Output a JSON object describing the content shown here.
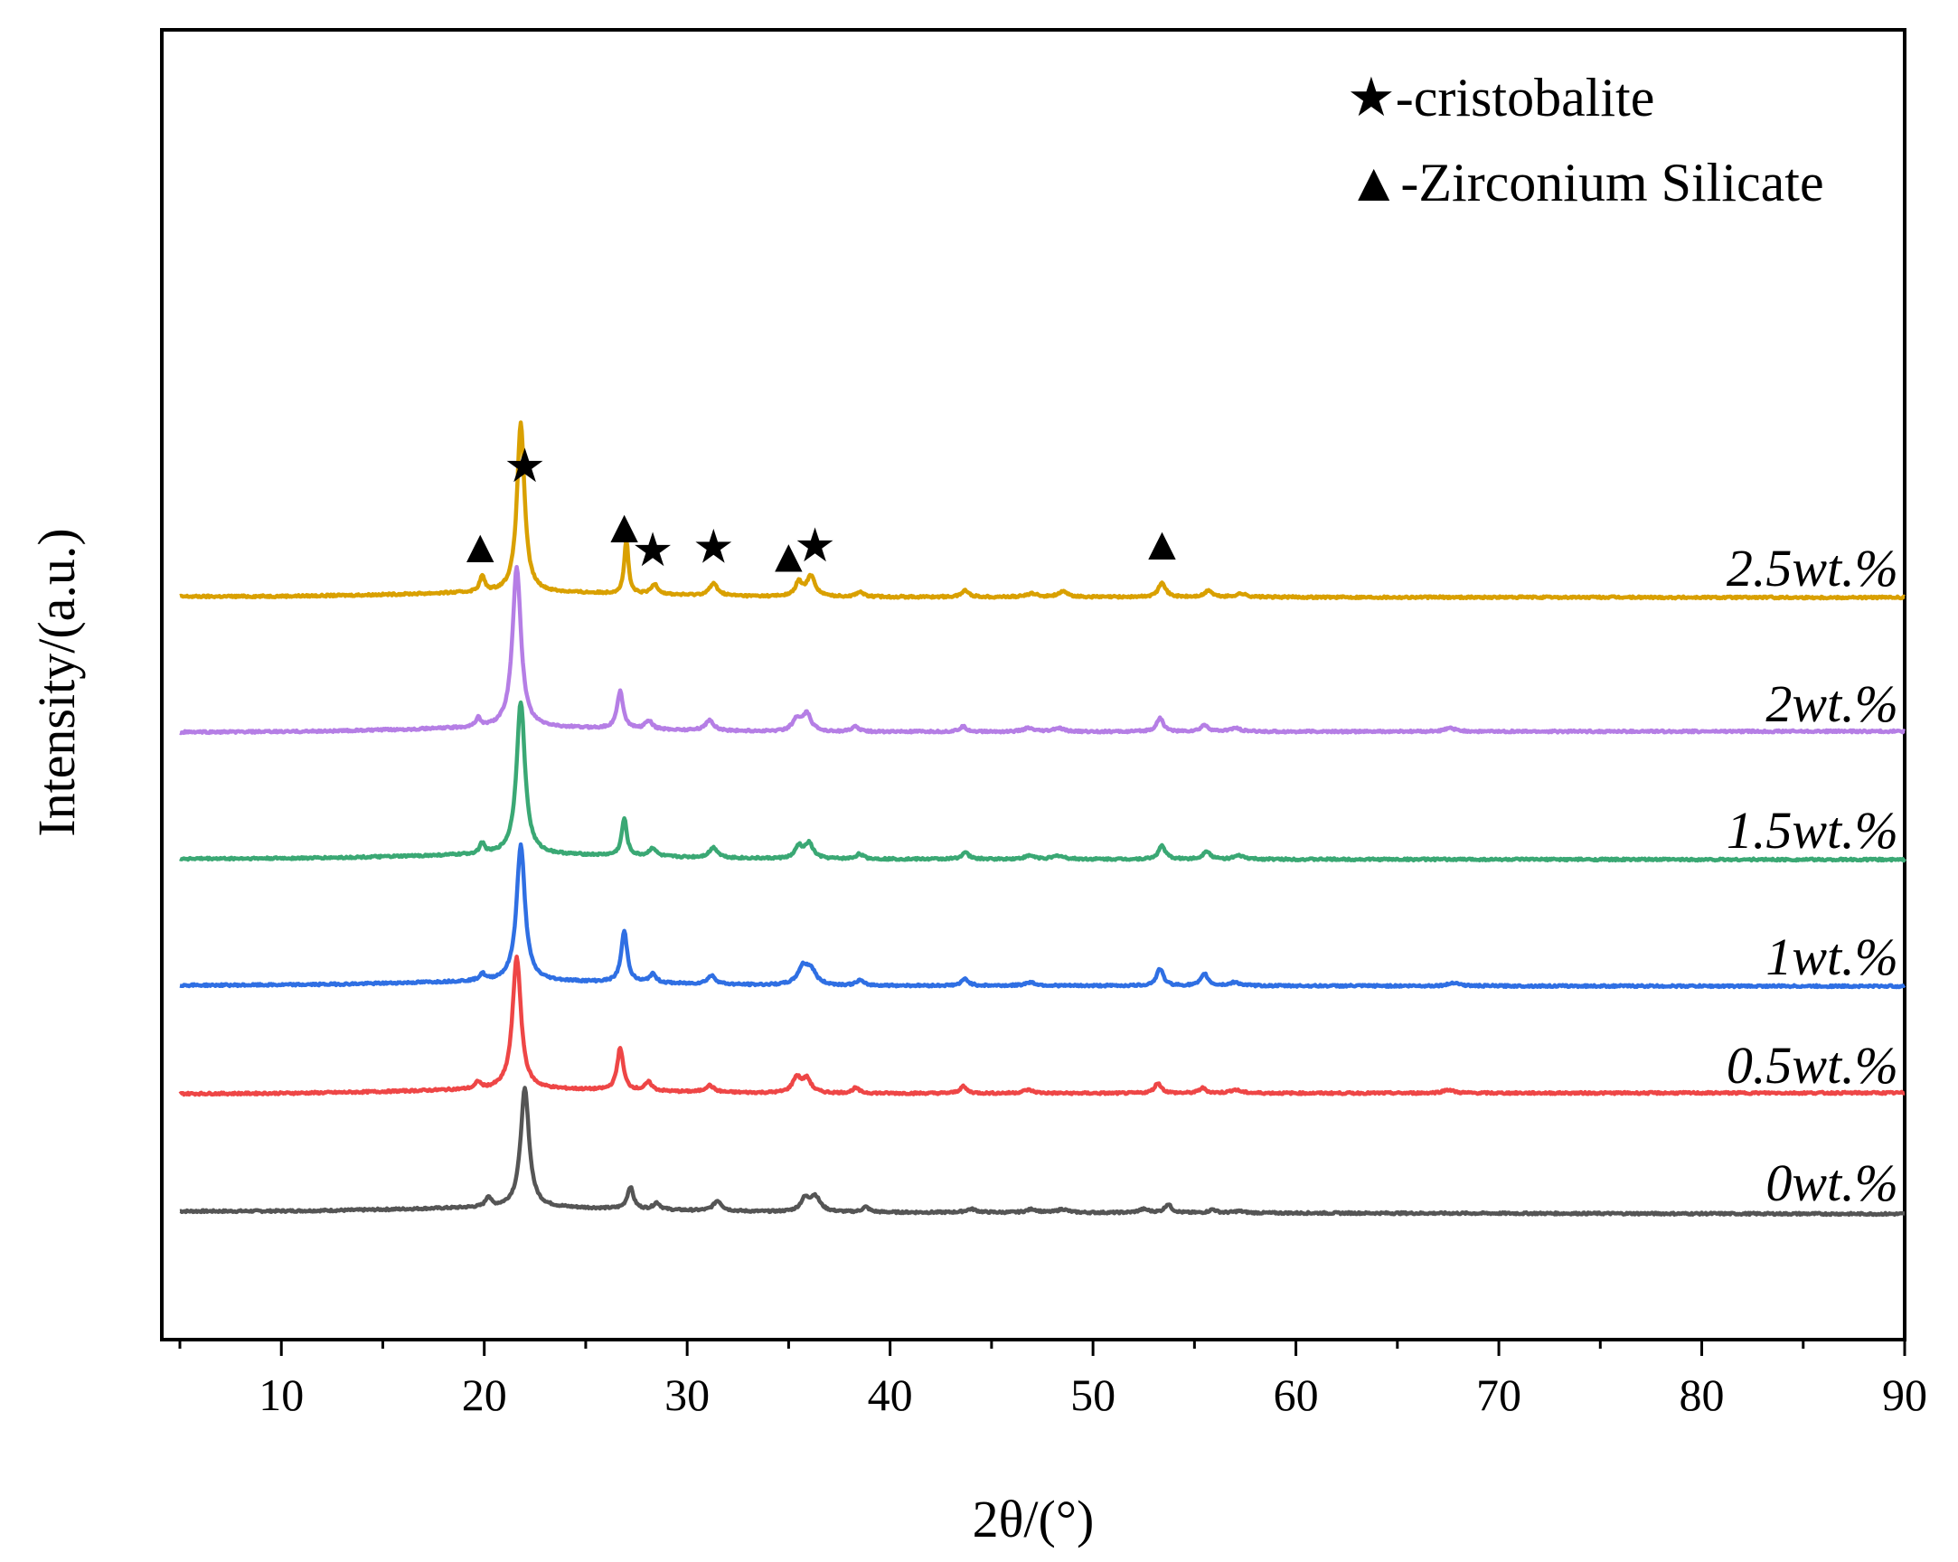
{
  "chart_data": {
    "type": "line",
    "title": "",
    "xlabel": "2θ/(°)",
    "ylabel": "Intensity/(a.u.)",
    "xlim": [
      5,
      90
    ],
    "xticks": [
      10,
      20,
      30,
      40,
      50,
      60,
      70,
      80,
      90
    ],
    "yticks": [],
    "grid": false,
    "legend_position": "top-right",
    "legend": [
      {
        "symbol": "★",
        "text": "-cristobalite"
      },
      {
        "symbol": "▲",
        "text": "-Zirconium Silicate"
      }
    ],
    "series": [
      {
        "name": "0wt.%",
        "label": "0wt.%",
        "color": "#555555",
        "offset": 0,
        "shift": 0.3,
        "peaks": [
          [
            20.2,
            6,
            0.15
          ],
          [
            22.0,
            70,
            0.25
          ],
          [
            27.2,
            13,
            0.18
          ],
          [
            28.5,
            4,
            0.2
          ],
          [
            31.5,
            6,
            0.25
          ],
          [
            35.8,
            7,
            0.25
          ],
          [
            36.3,
            9,
            0.3
          ],
          [
            38.8,
            3,
            0.2
          ],
          [
            44.0,
            2,
            0.3
          ],
          [
            47.0,
            2,
            0.3
          ],
          [
            48.5,
            2,
            0.3
          ],
          [
            52.5,
            2,
            0.3
          ],
          [
            53.7,
            5,
            0.2
          ],
          [
            55.9,
            2,
            0.2
          ],
          [
            57.2,
            1,
            0.3
          ]
        ]
      },
      {
        "name": "0.5wt.%",
        "label": "0.5wt.%",
        "color": "#ee4646",
        "offset": 130,
        "shift": -0.1,
        "peaks": [
          [
            19.7,
            4,
            0.15
          ],
          [
            21.6,
            78,
            0.25
          ],
          [
            26.7,
            25,
            0.18
          ],
          [
            28.1,
            5,
            0.2
          ],
          [
            31.1,
            4,
            0.25
          ],
          [
            35.4,
            9,
            0.25
          ],
          [
            35.9,
            8,
            0.25
          ],
          [
            38.3,
            3,
            0.2
          ],
          [
            43.6,
            4,
            0.2
          ],
          [
            46.8,
            2,
            0.3
          ],
          [
            53.2,
            6,
            0.2
          ],
          [
            55.4,
            3,
            0.2
          ],
          [
            57.0,
            2,
            0.3
          ],
          [
            67.5,
            2,
            0.3
          ]
        ]
      },
      {
        "name": "1wt.%",
        "label": "1wt.%",
        "color": "#2f6fe3",
        "offset": 250,
        "shift": 0.1,
        "peaks": [
          [
            19.9,
            4,
            0.15
          ],
          [
            21.8,
            80,
            0.25
          ],
          [
            26.9,
            30,
            0.18
          ],
          [
            28.3,
            5,
            0.2
          ],
          [
            31.2,
            5,
            0.25
          ],
          [
            35.7,
            10,
            0.3
          ],
          [
            36.1,
            8,
            0.3
          ],
          [
            38.5,
            3,
            0.2
          ],
          [
            43.7,
            4,
            0.2
          ],
          [
            46.9,
            2,
            0.3
          ],
          [
            53.3,
            10,
            0.2
          ],
          [
            55.5,
            7,
            0.2
          ],
          [
            57.0,
            2,
            0.3
          ],
          [
            67.8,
            2,
            0.3
          ]
        ]
      },
      {
        "name": "1.5wt.%",
        "label": "1.5wt.%",
        "color": "#3aa874",
        "offset": 390,
        "shift": 0.1,
        "peaks": [
          [
            19.9,
            6,
            0.15
          ],
          [
            21.8,
            90,
            0.25
          ],
          [
            26.9,
            22,
            0.15
          ],
          [
            28.3,
            5,
            0.2
          ],
          [
            31.3,
            6,
            0.25
          ],
          [
            35.5,
            7,
            0.2
          ],
          [
            36.0,
            9,
            0.25
          ],
          [
            38.5,
            3,
            0.2
          ],
          [
            43.7,
            4,
            0.2
          ],
          [
            46.9,
            2,
            0.3
          ],
          [
            48.3,
            2,
            0.3
          ],
          [
            53.4,
            8,
            0.2
          ],
          [
            55.6,
            5,
            0.2
          ],
          [
            57.2,
            2,
            0.3
          ]
        ]
      },
      {
        "name": "2wt.%",
        "label": "2wt.%",
        "color": "#b57ee5",
        "offset": 530,
        "shift": -0.1,
        "peaks": [
          [
            19.7,
            5,
            0.15
          ],
          [
            21.6,
            95,
            0.25
          ],
          [
            26.7,
            22,
            0.18
          ],
          [
            28.1,
            5,
            0.2
          ],
          [
            31.1,
            6,
            0.25
          ],
          [
            35.4,
            7,
            0.25
          ],
          [
            35.9,
            10,
            0.25
          ],
          [
            38.3,
            3,
            0.2
          ],
          [
            43.6,
            3,
            0.2
          ],
          [
            46.8,
            2,
            0.3
          ],
          [
            48.3,
            2,
            0.3
          ],
          [
            53.3,
            8,
            0.2
          ],
          [
            55.5,
            4,
            0.2
          ],
          [
            57.0,
            2,
            0.3
          ],
          [
            67.6,
            2,
            0.3
          ]
        ]
      },
      {
        "name": "2.5wt.%",
        "label": "2.5wt.%",
        "color": "#d9a000",
        "offset": 680,
        "shift": 0.1,
        "peaks": [
          [
            19.9,
            9,
            0.15
          ],
          [
            21.8,
            100,
            0.22
          ],
          [
            27.0,
            32,
            0.12
          ],
          [
            28.4,
            6,
            0.2
          ],
          [
            31.3,
            7,
            0.25
          ],
          [
            35.5,
            8,
            0.2
          ],
          [
            36.1,
            12,
            0.25
          ],
          [
            38.5,
            3,
            0.2
          ],
          [
            43.7,
            4,
            0.2
          ],
          [
            47.0,
            2,
            0.3
          ],
          [
            48.5,
            3,
            0.3
          ],
          [
            53.4,
            9,
            0.2
          ],
          [
            55.7,
            4,
            0.2
          ],
          [
            57.3,
            2,
            0.3
          ]
        ]
      }
    ],
    "annotations": [
      {
        "symbol": "▲",
        "x": 19.8
      },
      {
        "symbol": "★",
        "x": 22.0
      },
      {
        "symbol": "▲",
        "x": 26.9
      },
      {
        "symbol": "★",
        "x": 28.3
      },
      {
        "symbol": "★",
        "x": 31.3
      },
      {
        "symbol": "▲",
        "x": 35.0
      },
      {
        "symbol": "★",
        "x": 36.3
      },
      {
        "symbol": "▲",
        "x": 53.4
      }
    ]
  }
}
